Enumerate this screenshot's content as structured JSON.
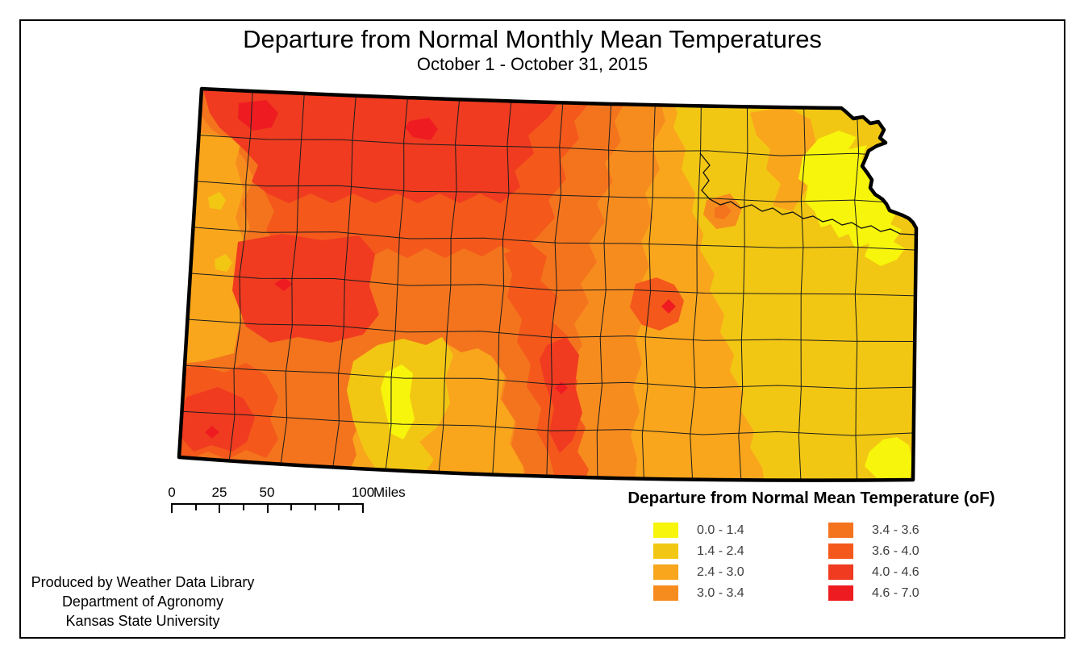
{
  "title": {
    "main": "Departure from Normal Monthly Mean Temperatures",
    "sub": "October 1 - October 31, 2015"
  },
  "legend": {
    "title": "Departure from Normal Mean Temperature (oF)",
    "classes": [
      {
        "range": "0.0 - 1.4",
        "color": "#F7F50C"
      },
      {
        "range": "1.4 - 2.4",
        "color": "#F2C713"
      },
      {
        "range": "2.4 - 3.0",
        "color": "#F9A61C"
      },
      {
        "range": "3.0 - 3.4",
        "color": "#F78C1E"
      },
      {
        "range": "3.4 - 3.6",
        "color": "#F4741D"
      },
      {
        "range": "3.6 - 4.0",
        "color": "#F4581B"
      },
      {
        "range": "4.0 - 4.6",
        "color": "#F03B20"
      },
      {
        "range": "4.6 - 7.0",
        "color": "#EE1C21"
      }
    ]
  },
  "scalebar": {
    "labels": [
      "0",
      "25",
      "50",
      "100"
    ],
    "unit": "Miles"
  },
  "credits": {
    "lines": [
      "Produced by Weather Data Library",
      "Department of Agronomy",
      "Kansas State University"
    ]
  },
  "map": {
    "border_color": "#000000",
    "county_line_color": "#1c1c1c",
    "river_color": "#111111"
  }
}
